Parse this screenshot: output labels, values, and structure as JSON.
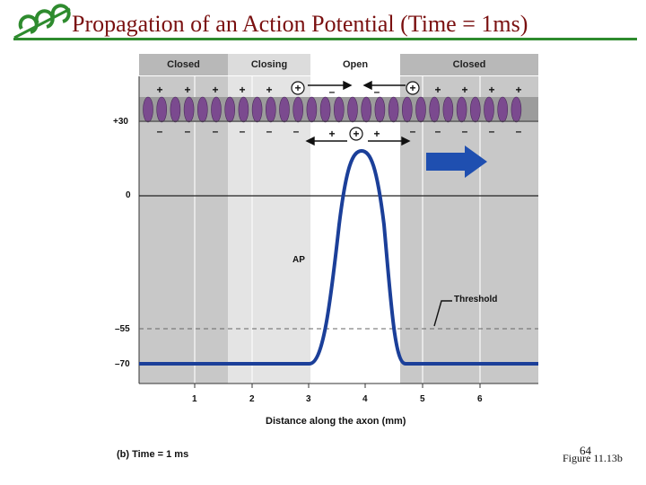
{
  "slide": {
    "title": "Propagation of an Action Potential (Time = 1ms)",
    "page_number": "64",
    "figure_ref": "Figure 11.13b",
    "logo_icon": "ecc-logo-icon"
  },
  "diagram": {
    "zones": [
      "Closed",
      "Closing",
      "Open",
      "Closed"
    ],
    "y_ticks": [
      "+30",
      "0",
      "–55",
      "–70"
    ],
    "x_ticks": [
      "1",
      "2",
      "3",
      "4",
      "5",
      "6"
    ],
    "x_label": "Distance along the axon (mm)",
    "ap_label": "AP",
    "threshold_label": "Threshold",
    "caption": "(b) Time = 1 ms",
    "direction_icon": "right-arrow-icon",
    "colors": {
      "curve": "#1b3f99",
      "channel": "#7b4a8f",
      "arrow": "#1f4fb0"
    }
  }
}
